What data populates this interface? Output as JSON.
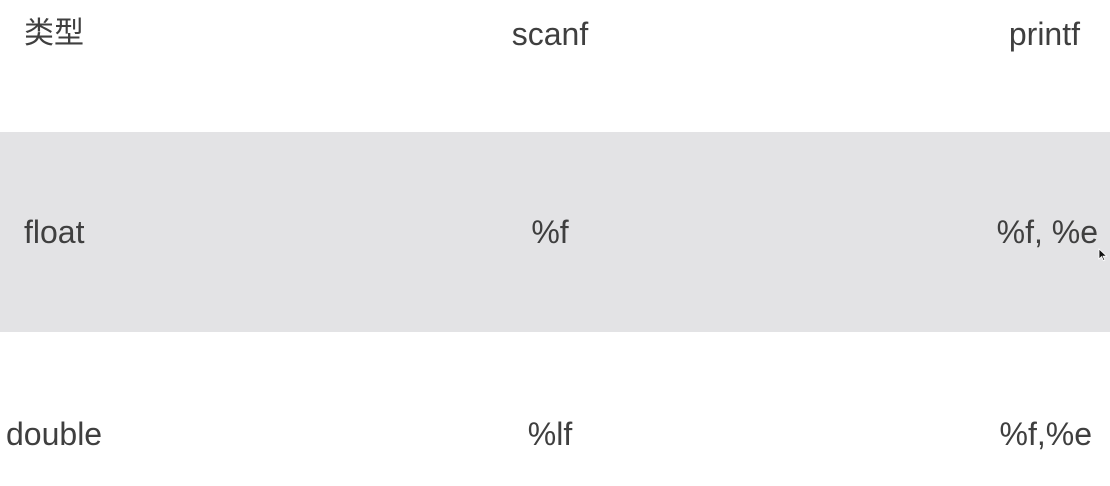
{
  "table": {
    "header": {
      "type": "类型",
      "scanf": "scanf",
      "printf": "printf"
    },
    "rows": [
      {
        "type": "float",
        "scanf": "%f",
        "printf": "%f, %e"
      },
      {
        "type": "double",
        "scanf": "%lf",
        "printf": "%f,%e"
      }
    ]
  },
  "colors": {
    "highlight_row": "#e3e3e5",
    "text": "#3f3f3f"
  },
  "icons": {
    "cursor": "mouse-pointer-icon"
  }
}
